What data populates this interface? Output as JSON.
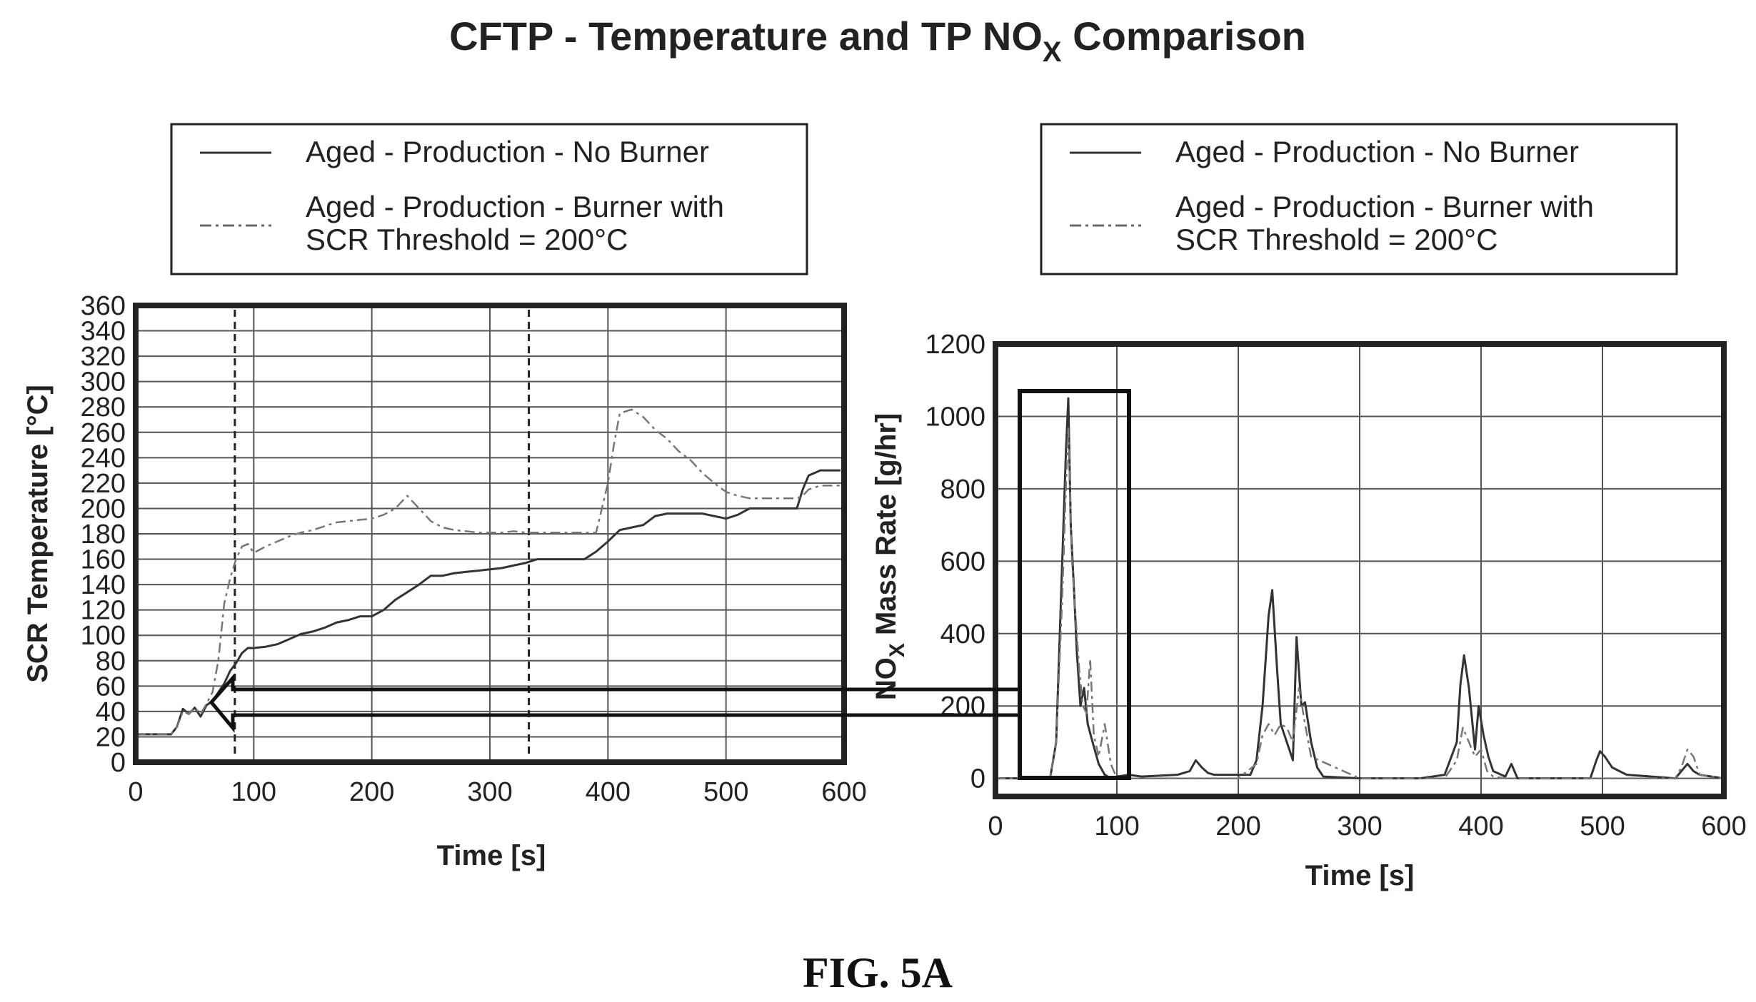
{
  "figure": {
    "title_main": "CFTP - Temperature and TP NO",
    "title_sub": "X",
    "title_end": " Comparison",
    "caption": "FIG. 5A"
  },
  "colors": {
    "ink": "#222222",
    "grid": "#555555",
    "series_solid": "#333333",
    "series_dashdot": "#777777"
  },
  "chart_data": [
    {
      "type": "line",
      "xlabel": "Time [s]",
      "ylabel": "SCR Temperature [°C]",
      "xlim": [
        0,
        600
      ],
      "ylim": [
        0,
        360
      ],
      "xticks": [
        0,
        100,
        200,
        300,
        400,
        500,
        600
      ],
      "yticks": [
        0,
        20,
        40,
        60,
        80,
        100,
        120,
        140,
        160,
        180,
        200,
        220,
        240,
        260,
        280,
        300,
        320,
        340,
        360
      ],
      "grid": true,
      "legend_position": "top",
      "vertical_markers": [
        84,
        333
      ],
      "series": [
        {
          "name": "Aged - Production - No Burner",
          "style": "solid",
          "x": [
            0,
            10,
            20,
            30,
            35,
            40,
            45,
            50,
            55,
            60,
            65,
            70,
            75,
            80,
            85,
            90,
            95,
            100,
            110,
            120,
            130,
            140,
            150,
            160,
            170,
            180,
            190,
            200,
            210,
            220,
            230,
            240,
            250,
            260,
            270,
            280,
            290,
            300,
            310,
            320,
            330,
            340,
            350,
            360,
            370,
            380,
            390,
            400,
            410,
            420,
            430,
            440,
            450,
            460,
            470,
            480,
            490,
            500,
            510,
            520,
            530,
            540,
            550,
            560,
            565,
            570,
            580,
            590,
            597
          ],
          "values": [
            22,
            22,
            22,
            22,
            28,
            42,
            38,
            43,
            36,
            45,
            48,
            55,
            62,
            72,
            78,
            86,
            90,
            90,
            91,
            93,
            97,
            101,
            103,
            106,
            110,
            112,
            115,
            115,
            120,
            128,
            134,
            140,
            147,
            147,
            149,
            150,
            151,
            152,
            153,
            155,
            157,
            160,
            160,
            160,
            160,
            160,
            166,
            174,
            183,
            185,
            187,
            194,
            196,
            196,
            196,
            196,
            194,
            192,
            195,
            200,
            200,
            200,
            200,
            200,
            215,
            226,
            230,
            230,
            230
          ]
        },
        {
          "name": "Aged - Production - Burner with SCR Threshold = 200°C",
          "style": "dashdot",
          "x": [
            0,
            10,
            20,
            30,
            35,
            40,
            45,
            50,
            55,
            60,
            65,
            70,
            75,
            80,
            85,
            90,
            95,
            100,
            110,
            120,
            130,
            140,
            150,
            160,
            170,
            180,
            190,
            200,
            210,
            220,
            230,
            240,
            250,
            260,
            270,
            280,
            290,
            300,
            310,
            320,
            330,
            340,
            350,
            360,
            370,
            380,
            390,
            400,
            405,
            410,
            420,
            430,
            440,
            450,
            460,
            470,
            480,
            490,
            500,
            510,
            520,
            530,
            540,
            550,
            560,
            565,
            570,
            580,
            590,
            597
          ],
          "values": [
            22,
            22,
            22,
            22,
            28,
            40,
            38,
            43,
            38,
            46,
            55,
            80,
            125,
            145,
            160,
            170,
            172,
            165,
            170,
            174,
            178,
            181,
            183,
            186,
            189,
            190,
            191,
            192,
            195,
            200,
            210,
            200,
            190,
            185,
            183,
            182,
            181,
            181,
            181,
            182,
            181,
            181,
            181,
            181,
            181,
            181,
            181,
            220,
            250,
            275,
            278,
            272,
            262,
            255,
            245,
            238,
            228,
            220,
            213,
            210,
            208,
            208,
            208,
            208,
            208,
            210,
            215,
            218,
            218,
            218
          ]
        }
      ]
    },
    {
      "type": "line",
      "xlabel": "Time [s]",
      "ylabel_main": "NO",
      "ylabel_sub": "X",
      "ylabel_end": " Mass Rate [g/hr]",
      "xlim": [
        0,
        600
      ],
      "ylim": [
        -50,
        1200
      ],
      "xticks": [
        0,
        100,
        200,
        300,
        400,
        500,
        600
      ],
      "yticks": [
        0,
        200,
        400,
        600,
        800,
        1000,
        1200
      ],
      "grid": true,
      "legend_position": "top",
      "highlight_box_x": [
        20,
        110
      ],
      "series": [
        {
          "name": "Aged - Production - No Burner",
          "style": "solid",
          "x": [
            0,
            20,
            40,
            45,
            50,
            55,
            58,
            60,
            62,
            65,
            67,
            70,
            73,
            76,
            80,
            85,
            90,
            95,
            100,
            110,
            120,
            150,
            160,
            165,
            170,
            175,
            180,
            200,
            210,
            215,
            220,
            225,
            228,
            232,
            235,
            240,
            245,
            248,
            252,
            255,
            260,
            265,
            270,
            300,
            350,
            370,
            380,
            383,
            386,
            390,
            395,
            398,
            402,
            406,
            410,
            420,
            425,
            430,
            490,
            495,
            498,
            502,
            508,
            520,
            560,
            565,
            570,
            575,
            580,
            600
          ],
          "values": [
            0,
            0,
            0,
            0,
            100,
            600,
            900,
            1050,
            700,
            500,
            350,
            200,
            250,
            150,
            100,
            40,
            10,
            0,
            5,
            10,
            5,
            10,
            20,
            50,
            30,
            15,
            10,
            10,
            10,
            50,
            200,
            450,
            520,
            300,
            150,
            100,
            50,
            390,
            200,
            210,
            100,
            30,
            5,
            0,
            0,
            10,
            100,
            260,
            340,
            250,
            80,
            200,
            120,
            60,
            20,
            5,
            40,
            0,
            0,
            50,
            75,
            60,
            30,
            10,
            0,
            20,
            40,
            20,
            10,
            0
          ]
        },
        {
          "name": "Aged - Production - Burner with SCR Threshold = 200°C",
          "style": "dashdot",
          "x": [
            0,
            20,
            40,
            45,
            50,
            55,
            58,
            60,
            63,
            66,
            69,
            72,
            75,
            78,
            81,
            85,
            90,
            95,
            100,
            150,
            200,
            215,
            220,
            225,
            230,
            235,
            240,
            245,
            250,
            255,
            260,
            300,
            370,
            380,
            385,
            390,
            395,
            400,
            405,
            410,
            420,
            500,
            560,
            565,
            570,
            575,
            580,
            600
          ],
          "values": [
            0,
            0,
            0,
            0,
            100,
            500,
            800,
            970,
            600,
            450,
            300,
            200,
            180,
            330,
            120,
            60,
            150,
            40,
            0,
            0,
            0,
            40,
            120,
            150,
            120,
            150,
            140,
            100,
            250,
            150,
            60,
            0,
            0,
            50,
            140,
            100,
            60,
            80,
            20,
            5,
            0,
            0,
            0,
            30,
            80,
            60,
            10,
            0
          ]
        }
      ]
    }
  ]
}
